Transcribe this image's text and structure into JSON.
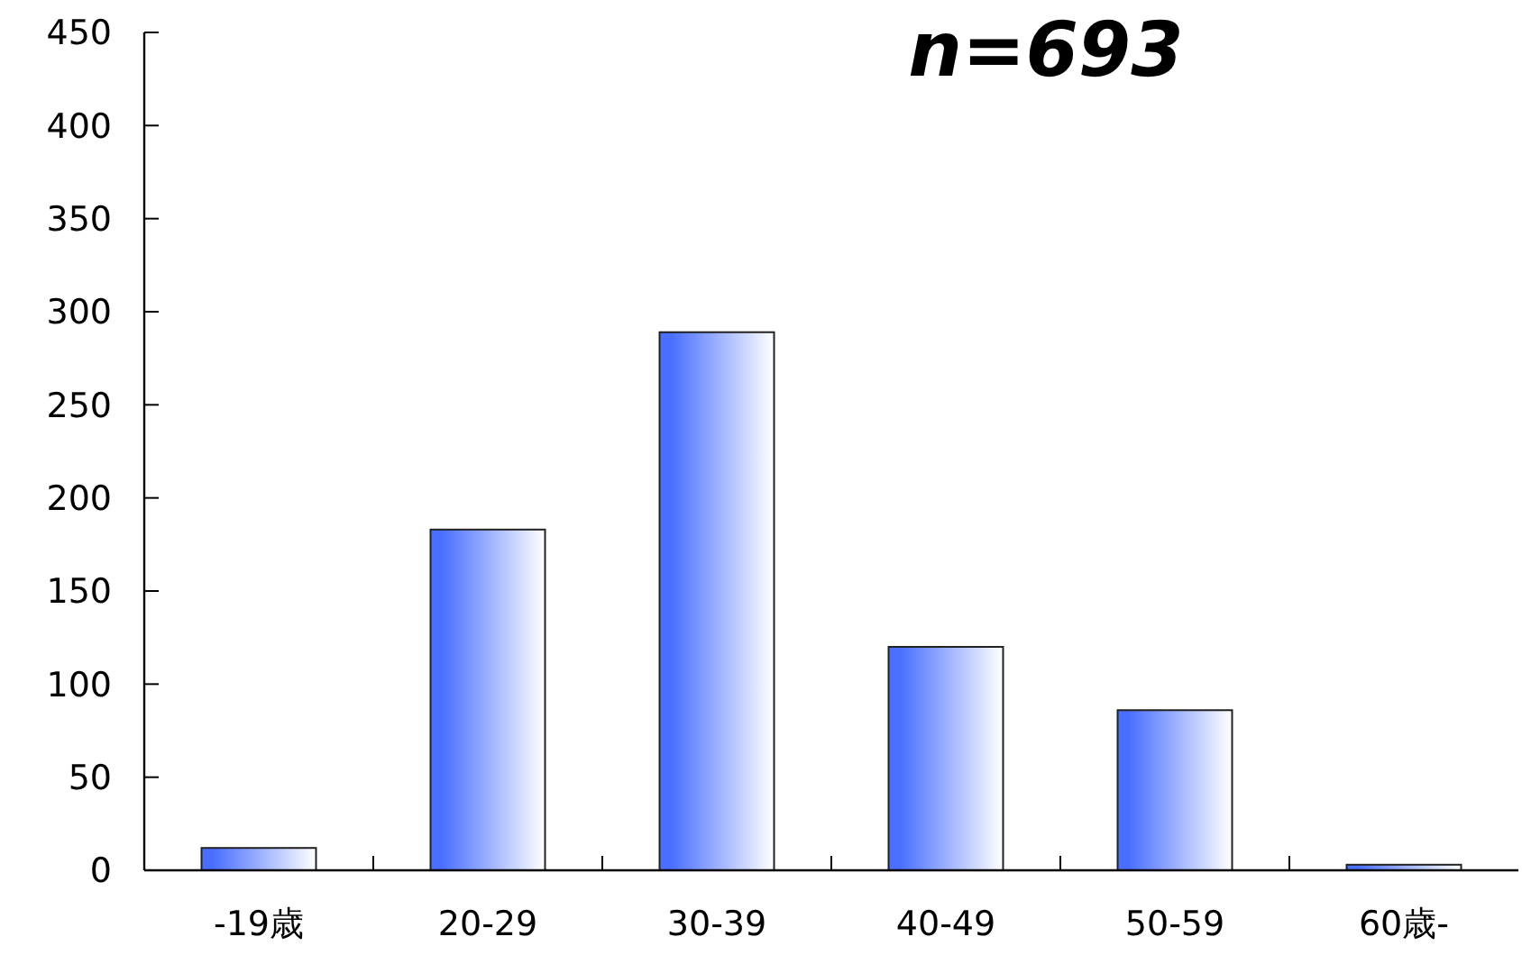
{
  "chart_data": {
    "type": "bar",
    "title": "n=693",
    "categories": [
      "-19歳",
      "20-29",
      "30-39",
      "40-49",
      "50-59",
      "60歳-"
    ],
    "values": [
      12,
      183,
      289,
      120,
      86,
      3
    ],
    "color": "#4a6fff",
    "ylim": [
      0,
      450
    ],
    "yticks": [
      0,
      50,
      100,
      150,
      200,
      250,
      300,
      350,
      400,
      450
    ],
    "grid": false
  }
}
